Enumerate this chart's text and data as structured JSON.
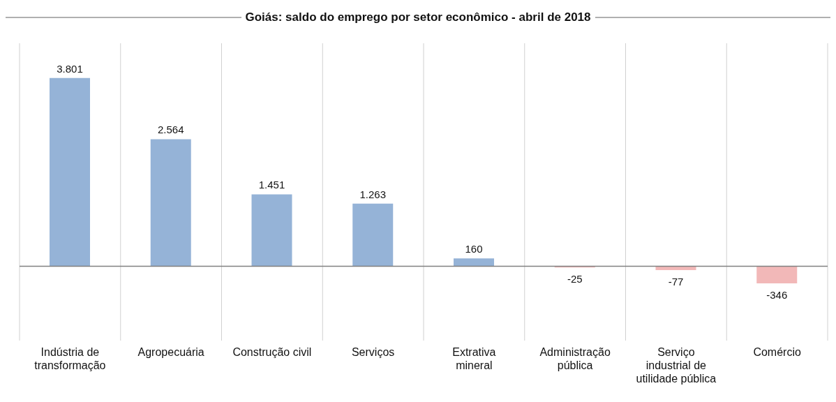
{
  "chart_data": {
    "type": "bar",
    "title": "Goiás: saldo do emprego por setor econômico - abril de 2018",
    "categories": [
      "Indústria de\ntransformação",
      "Agropecuária",
      "Construção civil",
      "Serviços",
      "Extrativa\nmineral",
      "Administração\npública",
      "Serviço\nindustrial de\nutilidade pública",
      "Comércio"
    ],
    "values": [
      3801,
      2564,
      1451,
      1263,
      160,
      -25,
      -77,
      -346
    ],
    "value_labels": [
      "3.801",
      "2.564",
      "1.451",
      "1.263",
      "160",
      "-25",
      "-77",
      "-346"
    ],
    "colors": [
      "#95b3d7",
      "#95b3d7",
      "#95b3d7",
      "#95b3d7",
      "#95b3d7",
      "#f2b8b8",
      "#f2b8b8",
      "#f2b8b8"
    ],
    "grid": "x"
  }
}
